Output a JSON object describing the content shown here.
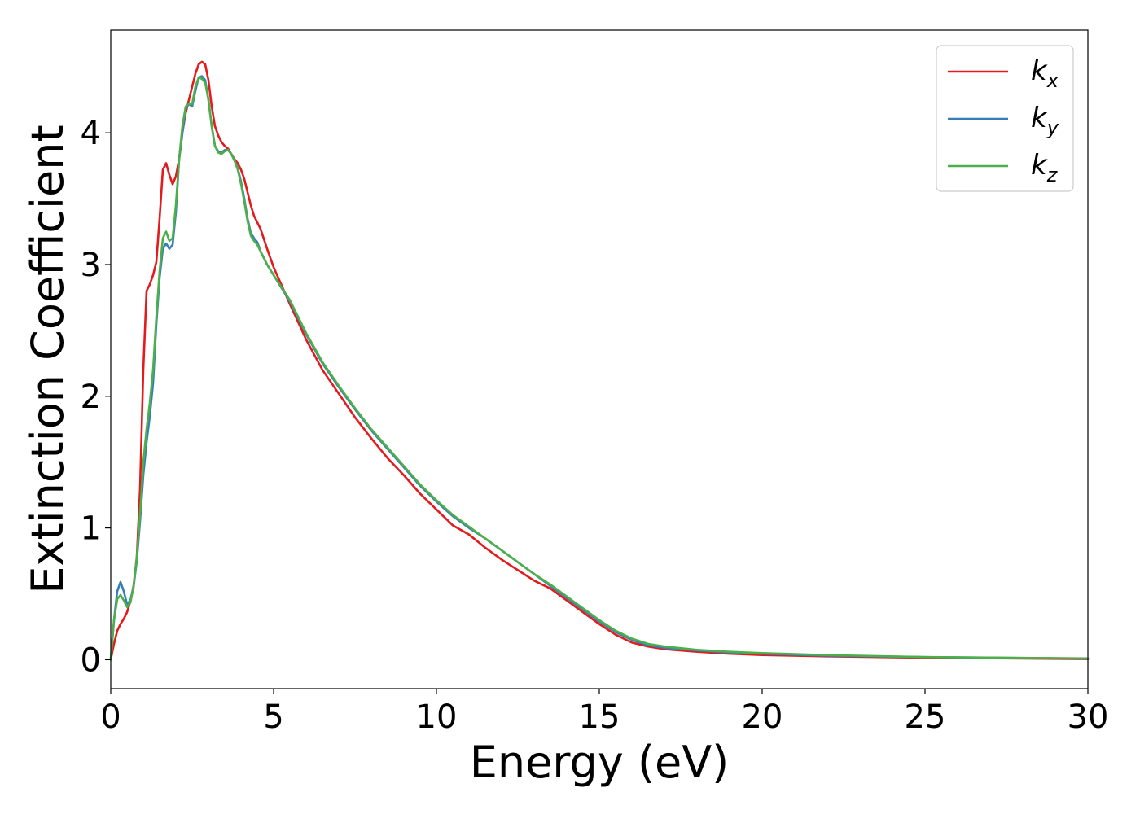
{
  "chart_data": {
    "type": "line",
    "xlabel": "Energy (eV)",
    "ylabel": "Extinction Coefficient",
    "xlim": [
      0,
      30
    ],
    "ylim": [
      -0.22,
      4.78
    ],
    "xticks": [
      0,
      5,
      10,
      15,
      20,
      25,
      30
    ],
    "xtick_labels": [
      "0",
      "5",
      "10",
      "15",
      "20",
      "25",
      "30"
    ],
    "yticks": [
      0,
      1,
      2,
      3,
      4
    ],
    "ytick_labels": [
      "0",
      "1",
      "2",
      "3",
      "4"
    ],
    "grid": false,
    "legend_position": "top-right",
    "series": [
      {
        "name": "k",
        "subscript": "x",
        "color": "#e41a1c",
        "points": [
          [
            0,
            0
          ],
          [
            0.1,
            0.12
          ],
          [
            0.2,
            0.22
          ],
          [
            0.3,
            0.27
          ],
          [
            0.4,
            0.31
          ],
          [
            0.5,
            0.36
          ],
          [
            0.6,
            0.44
          ],
          [
            0.7,
            0.56
          ],
          [
            0.8,
            0.78
          ],
          [
            0.9,
            1.3
          ],
          [
            1.0,
            2.2
          ],
          [
            1.1,
            2.8
          ],
          [
            1.2,
            2.85
          ],
          [
            1.3,
            2.92
          ],
          [
            1.4,
            3.02
          ],
          [
            1.5,
            3.35
          ],
          [
            1.6,
            3.72
          ],
          [
            1.7,
            3.77
          ],
          [
            1.8,
            3.68
          ],
          [
            1.9,
            3.61
          ],
          [
            2.0,
            3.67
          ],
          [
            2.1,
            3.8
          ],
          [
            2.2,
            4.0
          ],
          [
            2.3,
            4.15
          ],
          [
            2.4,
            4.25
          ],
          [
            2.5,
            4.35
          ],
          [
            2.6,
            4.45
          ],
          [
            2.7,
            4.52
          ],
          [
            2.8,
            4.54
          ],
          [
            2.9,
            4.52
          ],
          [
            3.0,
            4.4
          ],
          [
            3.1,
            4.2
          ],
          [
            3.2,
            4.05
          ],
          [
            3.3,
            3.98
          ],
          [
            3.4,
            3.93
          ],
          [
            3.5,
            3.9
          ],
          [
            3.6,
            3.88
          ],
          [
            3.7,
            3.84
          ],
          [
            3.8,
            3.8
          ],
          [
            3.9,
            3.77
          ],
          [
            4.0,
            3.72
          ],
          [
            4.1,
            3.65
          ],
          [
            4.2,
            3.55
          ],
          [
            4.3,
            3.45
          ],
          [
            4.4,
            3.37
          ],
          [
            4.5,
            3.32
          ],
          [
            4.6,
            3.27
          ],
          [
            4.8,
            3.12
          ],
          [
            5.0,
            2.98
          ],
          [
            5.5,
            2.7
          ],
          [
            6.0,
            2.43
          ],
          [
            6.5,
            2.2
          ],
          [
            7.0,
            2.02
          ],
          [
            7.5,
            1.84
          ],
          [
            8.0,
            1.68
          ],
          [
            8.5,
            1.53
          ],
          [
            9.0,
            1.4
          ],
          [
            9.5,
            1.26
          ],
          [
            10.0,
            1.14
          ],
          [
            10.5,
            1.02
          ],
          [
            11.0,
            0.95
          ],
          [
            11.5,
            0.85
          ],
          [
            12.0,
            0.76
          ],
          [
            12.5,
            0.68
          ],
          [
            13.0,
            0.6
          ],
          [
            13.5,
            0.54
          ],
          [
            14.0,
            0.45
          ],
          [
            14.5,
            0.36
          ],
          [
            15.0,
            0.27
          ],
          [
            15.5,
            0.19
          ],
          [
            16.0,
            0.13
          ],
          [
            16.5,
            0.1
          ],
          [
            17.0,
            0.08
          ],
          [
            18.0,
            0.06
          ],
          [
            19.0,
            0.045
          ],
          [
            20.0,
            0.035
          ],
          [
            22.0,
            0.025
          ],
          [
            25.0,
            0.015
          ],
          [
            30.0,
            0.005
          ]
        ]
      },
      {
        "name": "k",
        "subscript": "y",
        "color": "#377eb8",
        "points": [
          [
            0,
            0
          ],
          [
            0.1,
            0.3
          ],
          [
            0.2,
            0.52
          ],
          [
            0.3,
            0.59
          ],
          [
            0.4,
            0.52
          ],
          [
            0.5,
            0.42
          ],
          [
            0.6,
            0.45
          ],
          [
            0.7,
            0.55
          ],
          [
            0.8,
            0.75
          ],
          [
            0.9,
            1.05
          ],
          [
            1.0,
            1.4
          ],
          [
            1.1,
            1.65
          ],
          [
            1.2,
            1.85
          ],
          [
            1.3,
            2.1
          ],
          [
            1.4,
            2.55
          ],
          [
            1.5,
            2.9
          ],
          [
            1.6,
            3.12
          ],
          [
            1.7,
            3.16
          ],
          [
            1.8,
            3.12
          ],
          [
            1.9,
            3.15
          ],
          [
            2.0,
            3.4
          ],
          [
            2.1,
            3.8
          ],
          [
            2.2,
            4.0
          ],
          [
            2.3,
            4.18
          ],
          [
            2.4,
            4.22
          ],
          [
            2.5,
            4.2
          ],
          [
            2.6,
            4.32
          ],
          [
            2.7,
            4.42
          ],
          [
            2.8,
            4.43
          ],
          [
            2.9,
            4.4
          ],
          [
            3.0,
            4.25
          ],
          [
            3.1,
            4.05
          ],
          [
            3.2,
            3.9
          ],
          [
            3.3,
            3.86
          ],
          [
            3.4,
            3.85
          ],
          [
            3.5,
            3.87
          ],
          [
            3.6,
            3.87
          ],
          [
            3.7,
            3.84
          ],
          [
            3.8,
            3.79
          ],
          [
            3.9,
            3.73
          ],
          [
            4.0,
            3.63
          ],
          [
            4.1,
            3.5
          ],
          [
            4.2,
            3.35
          ],
          [
            4.3,
            3.24
          ],
          [
            4.4,
            3.2
          ],
          [
            4.5,
            3.17
          ],
          [
            4.6,
            3.1
          ],
          [
            4.8,
            3.0
          ],
          [
            5.0,
            2.92
          ],
          [
            5.5,
            2.72
          ],
          [
            6.0,
            2.47
          ],
          [
            6.5,
            2.25
          ],
          [
            7.0,
            2.07
          ],
          [
            7.5,
            1.9
          ],
          [
            8.0,
            1.74
          ],
          [
            8.5,
            1.6
          ],
          [
            9.0,
            1.46
          ],
          [
            9.5,
            1.32
          ],
          [
            10.0,
            1.2
          ],
          [
            10.5,
            1.09
          ],
          [
            11.0,
            1.0
          ],
          [
            11.5,
            0.92
          ],
          [
            12.0,
            0.83
          ],
          [
            12.5,
            0.74
          ],
          [
            13.0,
            0.65
          ],
          [
            13.5,
            0.56
          ],
          [
            14.0,
            0.47
          ],
          [
            14.5,
            0.38
          ],
          [
            15.0,
            0.29
          ],
          [
            15.5,
            0.21
          ],
          [
            16.0,
            0.15
          ],
          [
            16.5,
            0.11
          ],
          [
            17.0,
            0.09
          ],
          [
            18.0,
            0.07
          ],
          [
            19.0,
            0.055
          ],
          [
            20.0,
            0.045
          ],
          [
            22.0,
            0.03
          ],
          [
            25.0,
            0.02
          ],
          [
            30.0,
            0.008
          ]
        ]
      },
      {
        "name": "k",
        "subscript": "z",
        "color": "#4daf4a",
        "points": [
          [
            0,
            0
          ],
          [
            0.1,
            0.3
          ],
          [
            0.2,
            0.46
          ],
          [
            0.3,
            0.49
          ],
          [
            0.4,
            0.45
          ],
          [
            0.5,
            0.4
          ],
          [
            0.6,
            0.43
          ],
          [
            0.7,
            0.55
          ],
          [
            0.8,
            0.78
          ],
          [
            0.9,
            1.1
          ],
          [
            1.0,
            1.5
          ],
          [
            1.1,
            1.75
          ],
          [
            1.2,
            1.95
          ],
          [
            1.3,
            2.2
          ],
          [
            1.4,
            2.6
          ],
          [
            1.5,
            2.95
          ],
          [
            1.6,
            3.2
          ],
          [
            1.7,
            3.25
          ],
          [
            1.8,
            3.18
          ],
          [
            1.9,
            3.2
          ],
          [
            2.0,
            3.45
          ],
          [
            2.1,
            3.8
          ],
          [
            2.2,
            4.05
          ],
          [
            2.3,
            4.2
          ],
          [
            2.4,
            4.22
          ],
          [
            2.5,
            4.22
          ],
          [
            2.6,
            4.35
          ],
          [
            2.7,
            4.42
          ],
          [
            2.8,
            4.41
          ],
          [
            2.9,
            4.38
          ],
          [
            3.0,
            4.25
          ],
          [
            3.1,
            4.05
          ],
          [
            3.2,
            3.9
          ],
          [
            3.3,
            3.85
          ],
          [
            3.4,
            3.84
          ],
          [
            3.5,
            3.86
          ],
          [
            3.6,
            3.87
          ],
          [
            3.7,
            3.84
          ],
          [
            3.8,
            3.79
          ],
          [
            3.9,
            3.72
          ],
          [
            4.0,
            3.61
          ],
          [
            4.1,
            3.48
          ],
          [
            4.2,
            3.33
          ],
          [
            4.3,
            3.22
          ],
          [
            4.4,
            3.18
          ],
          [
            4.5,
            3.15
          ],
          [
            4.6,
            3.1
          ],
          [
            4.8,
            3.0
          ],
          [
            5.0,
            2.92
          ],
          [
            5.5,
            2.73
          ],
          [
            6.0,
            2.48
          ],
          [
            6.5,
            2.26
          ],
          [
            7.0,
            2.08
          ],
          [
            7.5,
            1.91
          ],
          [
            8.0,
            1.75
          ],
          [
            8.5,
            1.61
          ],
          [
            9.0,
            1.47
          ],
          [
            9.5,
            1.33
          ],
          [
            10.0,
            1.21
          ],
          [
            10.5,
            1.1
          ],
          [
            11.0,
            1.01
          ],
          [
            11.5,
            0.92
          ],
          [
            12.0,
            0.83
          ],
          [
            12.5,
            0.74
          ],
          [
            13.0,
            0.65
          ],
          [
            13.5,
            0.57
          ],
          [
            14.0,
            0.48
          ],
          [
            14.5,
            0.39
          ],
          [
            15.0,
            0.3
          ],
          [
            15.5,
            0.22
          ],
          [
            16.0,
            0.16
          ],
          [
            16.5,
            0.12
          ],
          [
            17.0,
            0.1
          ],
          [
            18.0,
            0.075
          ],
          [
            19.0,
            0.06
          ],
          [
            20.0,
            0.05
          ],
          [
            22.0,
            0.035
          ],
          [
            25.0,
            0.02
          ],
          [
            30.0,
            0.01
          ]
        ]
      }
    ]
  }
}
